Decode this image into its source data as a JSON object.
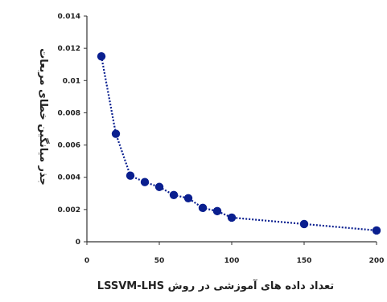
{
  "chart_data": {
    "type": "line",
    "xlabel": "تعداد داده های آموزشی در روش LSSVM-LHS",
    "ylabel": "جذر میانگین خطای مربعات",
    "x": [
      10,
      20,
      30,
      40,
      50,
      60,
      70,
      80,
      90,
      100,
      150,
      200
    ],
    "series": [
      {
        "values": [
          0.0115,
          0.0067,
          0.0041,
          0.0037,
          0.0034,
          0.0029,
          0.0027,
          0.0021,
          0.0019,
          0.0015,
          0.0011,
          0.0007
        ],
        "color": "#0a1f8f"
      }
    ],
    "xlim": [
      0,
      200
    ],
    "ylim": [
      0,
      0.014
    ],
    "xticks": [
      "0",
      "50",
      "100",
      "150",
      "200"
    ],
    "xtick_values": [
      0,
      50,
      100,
      150,
      200
    ],
    "yticks": [
      "0",
      "0.002",
      "0.004",
      "0.006",
      "0.008",
      "0.01",
      "0.012",
      "0.014"
    ],
    "ytick_values": [
      0,
      0.002,
      0.004,
      0.006,
      0.008,
      0.01,
      0.012,
      0.014
    ],
    "grid": false,
    "line_style": "dotted",
    "marker": "circle"
  }
}
